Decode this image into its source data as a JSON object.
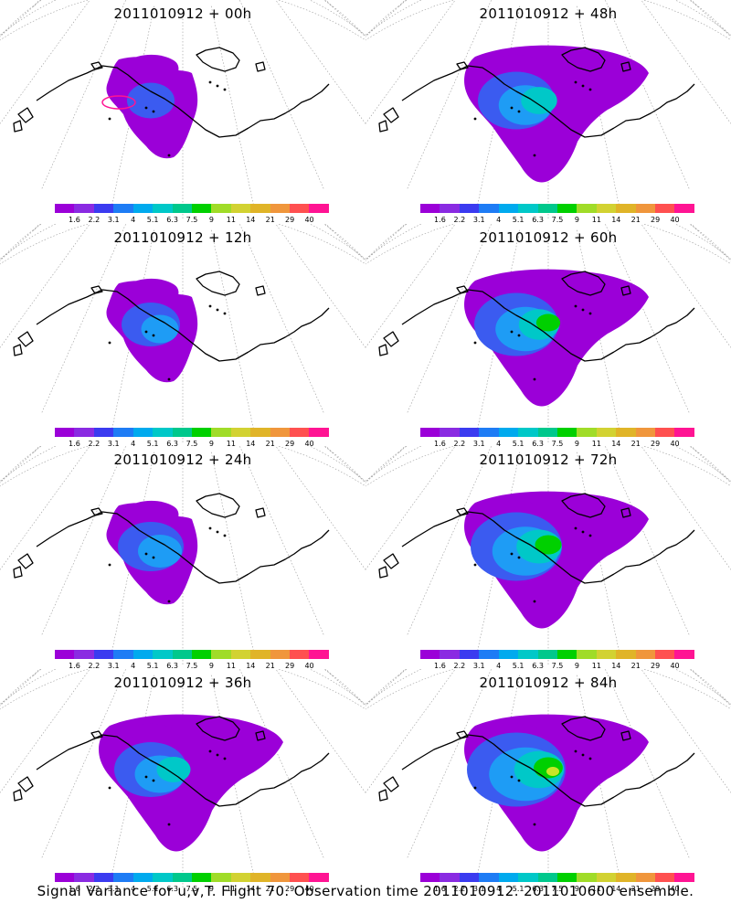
{
  "figure": {
    "caption": "Signal Variance for u,v,T. Flight 70. Observation time 2011010912. 2011010600 ensemble."
  },
  "panels": [
    {
      "title": "2011010912 + 00h",
      "intensity": 0.15
    },
    {
      "title": "2011010912 + 48h",
      "intensity": 0.55
    },
    {
      "title": "2011010912 + 12h",
      "intensity": 0.3
    },
    {
      "title": "2011010912 + 60h",
      "intensity": 0.65
    },
    {
      "title": "2011010912 + 24h",
      "intensity": 0.4
    },
    {
      "title": "2011010912 + 72h",
      "intensity": 0.75
    },
    {
      "title": "2011010912 + 36h",
      "intensity": 0.5
    },
    {
      "title": "2011010912 + 84h",
      "intensity": 0.85
    }
  ],
  "colorbar": {
    "labels": [
      "1.6",
      "2.2",
      "3.1",
      "4",
      "5.1",
      "6.3",
      "7.5",
      "9",
      "11",
      "14",
      "21",
      "29",
      "40"
    ],
    "colors": [
      "#9b00d8",
      "#8a2be2",
      "#3b3bf0",
      "#1e7cf5",
      "#00aaee",
      "#00c8c8",
      "#00c88c",
      "#00d000",
      "#a0dc28",
      "#d2d232",
      "#e0b428",
      "#f0963c",
      "#ff5050",
      "#ff1493"
    ]
  },
  "fill_colors": {
    "purple": "#9b00d8",
    "blue": "#3b5bf0",
    "lightblue": "#1e9cf5",
    "cyan": "#00c8c8",
    "green": "#00d000",
    "yellow": "#c8e628",
    "magenta": "#ff1493"
  }
}
